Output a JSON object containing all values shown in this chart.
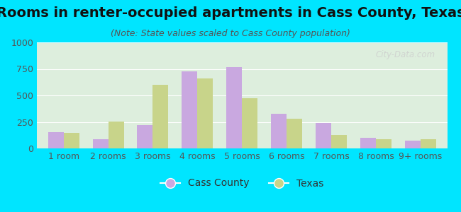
{
  "title": "Rooms in renter-occupied apartments in Cass County, Texas",
  "subtitle": "(Note: State values scaled to Cass County population)",
  "categories": [
    "1 room",
    "2 rooms",
    "3 rooms",
    "4 rooms",
    "5 rooms",
    "6 rooms",
    "7 rooms",
    "8 rooms",
    "9+ rooms"
  ],
  "cass_county": [
    155,
    85,
    220,
    730,
    765,
    330,
    240,
    100,
    75
  ],
  "texas": [
    148,
    255,
    600,
    660,
    475,
    278,
    130,
    90,
    85
  ],
  "cass_color": "#c9a8e0",
  "texas_color": "#c8d48a",
  "background_color": "#00e5ff",
  "plot_bg_color": "#ddeedd",
  "ylim": [
    0,
    1000
  ],
  "yticks": [
    0,
    250,
    500,
    750,
    1000
  ],
  "title_fontsize": 14,
  "subtitle_fontsize": 9,
  "axis_label_fontsize": 9,
  "legend_fontsize": 10,
  "watermark": "City-Data.com"
}
